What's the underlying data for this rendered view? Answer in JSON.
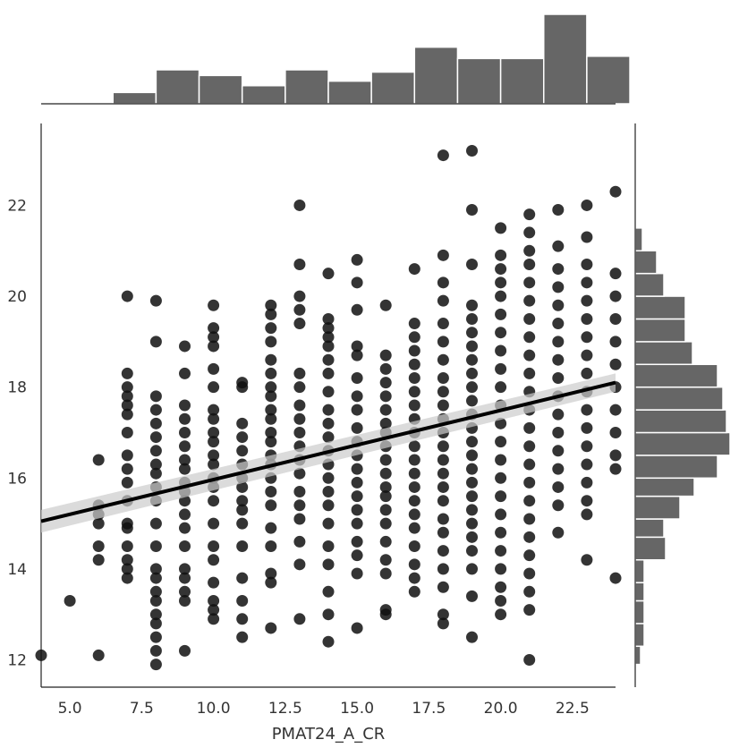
{
  "chart_data": {
    "type": "scatter",
    "title": "",
    "xlabel": "PMAT24_A_CR",
    "ylabel": "",
    "xlim": [
      4.0,
      24.0
    ],
    "ylim": [
      11.4,
      23.8
    ],
    "x_ticks": [
      "5.0",
      "7.5",
      "10.0",
      "12.5",
      "15.0",
      "17.5",
      "20.0",
      "22.5"
    ],
    "y_ticks": [
      "12",
      "14",
      "16",
      "18",
      "20",
      "22"
    ],
    "grid": false,
    "point_color": "#111111",
    "regression": {
      "x0": 4.0,
      "y0": 15.05,
      "x1": 24.0,
      "y1": 18.1,
      "ci_color": "#cccccc",
      "line_color": "#000000"
    },
    "scatter_columns": [
      {
        "x": 4,
        "y": [
          12.1
        ]
      },
      {
        "x": 5,
        "y": [
          13.3
        ]
      },
      {
        "x": 6,
        "y": [
          12.1,
          14.2,
          14.5,
          15.0,
          15.2,
          15.4,
          16.4
        ]
      },
      {
        "x": 7,
        "y": [
          13.8,
          14.0,
          14.2,
          14.5,
          14.9,
          15.0,
          15.5,
          15.9,
          16.2,
          16.5,
          17.0,
          17.4,
          17.6,
          17.8,
          18.0,
          18.3,
          20.0
        ]
      },
      {
        "x": 8,
        "y": [
          11.9,
          12.2,
          12.5,
          12.8,
          13.0,
          13.3,
          13.5,
          13.8,
          14.0,
          14.5,
          15.0,
          15.5,
          15.8,
          16.1,
          16.3,
          16.6,
          16.9,
          17.2,
          17.5,
          17.8,
          19.0,
          19.9
        ]
      },
      {
        "x": 9,
        "y": [
          12.2,
          13.3,
          13.5,
          13.8,
          14.0,
          14.5,
          14.9,
          15.2,
          15.5,
          15.7,
          15.9,
          16.2,
          16.4,
          16.7,
          17.0,
          17.3,
          17.6,
          18.3,
          18.9
        ]
      },
      {
        "x": 10,
        "y": [
          12.9,
          13.1,
          13.3,
          13.7,
          14.2,
          14.5,
          15.0,
          15.5,
          15.8,
          16.0,
          16.3,
          16.5,
          16.8,
          17.0,
          17.3,
          17.5,
          18.0,
          18.4,
          18.9,
          19.1,
          19.3,
          19.8
        ]
      },
      {
        "x": 11,
        "y": [
          12.5,
          12.9,
          13.3,
          13.8,
          14.5,
          15.0,
          15.3,
          15.5,
          15.8,
          16.0,
          16.3,
          16.6,
          16.9,
          17.2,
          18.0,
          18.1
        ]
      },
      {
        "x": 12,
        "y": [
          12.7,
          13.7,
          13.9,
          14.5,
          14.9,
          15.4,
          15.7,
          16.0,
          16.3,
          16.5,
          16.8,
          17.0,
          17.3,
          17.5,
          17.8,
          18.0,
          18.3,
          18.6,
          19.0,
          19.3,
          19.6,
          19.8
        ]
      },
      {
        "x": 13,
        "y": [
          12.9,
          14.1,
          14.6,
          15.1,
          15.4,
          15.7,
          16.1,
          16.4,
          16.7,
          17.0,
          17.3,
          17.6,
          18.0,
          18.3,
          19.4,
          19.7,
          20.0,
          20.7,
          22.0
        ]
      },
      {
        "x": 14,
        "y": [
          12.4,
          13.0,
          13.5,
          14.1,
          14.5,
          15.0,
          15.4,
          15.7,
          16.0,
          16.3,
          16.6,
          16.9,
          17.2,
          17.5,
          17.9,
          18.3,
          18.6,
          18.9,
          19.1,
          19.3,
          19.5,
          20.5
        ]
      },
      {
        "x": 15,
        "y": [
          12.7,
          13.9,
          14.3,
          14.6,
          15.0,
          15.3,
          15.6,
          15.9,
          16.2,
          16.5,
          16.8,
          17.1,
          17.5,
          17.8,
          18.2,
          18.7,
          18.9,
          19.7,
          20.3,
          20.8
        ]
      },
      {
        "x": 16,
        "y": [
          13.0,
          13.1,
          13.9,
          14.2,
          14.6,
          15.0,
          15.3,
          15.6,
          15.8,
          16.1,
          16.4,
          16.7,
          17.0,
          17.2,
          17.5,
          17.8,
          18.1,
          18.4,
          18.7,
          19.8
        ]
      },
      {
        "x": 17,
        "y": [
          13.5,
          13.8,
          14.1,
          14.5,
          14.9,
          15.2,
          15.5,
          15.8,
          16.1,
          16.4,
          16.7,
          17.0,
          17.3,
          17.6,
          17.9,
          18.2,
          18.5,
          18.8,
          19.1,
          19.4,
          20.6
        ]
      },
      {
        "x": 18,
        "y": [
          12.8,
          13.0,
          13.6,
          14.0,
          14.4,
          14.8,
          15.1,
          15.5,
          15.8,
          16.1,
          16.4,
          16.7,
          17.0,
          17.3,
          17.6,
          17.9,
          18.2,
          18.6,
          19.0,
          19.4,
          19.9,
          20.3,
          20.9,
          23.1
        ]
      },
      {
        "x": 19,
        "y": [
          12.5,
          13.4,
          14.0,
          14.4,
          14.7,
          15.0,
          15.3,
          15.6,
          15.9,
          16.2,
          16.5,
          16.8,
          17.1,
          17.4,
          17.7,
          18.0,
          18.3,
          18.6,
          18.9,
          19.2,
          19.5,
          19.8,
          20.7,
          21.9,
          23.2
        ]
      },
      {
        "x": 20,
        "y": [
          13.0,
          13.3,
          13.6,
          14.0,
          14.4,
          14.8,
          15.2,
          15.6,
          16.0,
          16.4,
          16.8,
          17.2,
          17.6,
          18.0,
          18.4,
          18.8,
          19.2,
          19.6,
          20.0,
          20.3,
          20.6,
          20.9,
          21.5
        ]
      },
      {
        "x": 21,
        "y": [
          12.0,
          13.1,
          13.5,
          13.9,
          14.3,
          14.7,
          15.1,
          15.5,
          15.9,
          16.3,
          16.7,
          17.1,
          17.5,
          17.9,
          18.3,
          18.7,
          19.1,
          19.5,
          19.9,
          20.3,
          20.7,
          21.0,
          21.4,
          21.8
        ]
      },
      {
        "x": 22,
        "y": [
          14.8,
          15.4,
          15.8,
          16.2,
          16.6,
          17.0,
          17.4,
          17.8,
          18.2,
          18.6,
          19.0,
          19.4,
          19.8,
          20.2,
          20.6,
          21.1,
          21.9
        ]
      },
      {
        "x": 23,
        "y": [
          14.2,
          15.2,
          15.5,
          15.9,
          16.3,
          16.7,
          17.1,
          17.5,
          17.9,
          18.3,
          18.7,
          19.1,
          19.5,
          19.9,
          20.3,
          20.7,
          21.3,
          22.0
        ]
      },
      {
        "x": 24,
        "y": [
          13.8,
          16.2,
          16.5,
          17.0,
          17.5,
          18.0,
          18.5,
          19.0,
          19.5,
          20.0,
          20.5,
          22.3
        ]
      }
    ],
    "marginal_x": {
      "bins": [
        6.5,
        8.0,
        9.5,
        11.0,
        12.5,
        14.0,
        15.5,
        17.0,
        18.5,
        20.0,
        21.5,
        23.0,
        24.5
      ],
      "counts": [
        1,
        3,
        2.5,
        1.6,
        3,
        2,
        2.8,
        5,
        4,
        4,
        7.9,
        4.2,
        4
      ]
    },
    "marginal_y": {
      "bins": [
        11.9,
        12.3,
        12.8,
        13.3,
        13.7,
        14.2,
        14.7,
        15.1,
        15.6,
        16.0,
        16.5,
        17.0,
        17.5,
        18.0,
        18.5,
        19.0,
        19.5,
        20.0,
        20.5,
        21.0,
        21.5
      ],
      "counts": [
        0.3,
        0.5,
        0.5,
        0.5,
        0.5,
        1.7,
        1.6,
        2.5,
        3.3,
        4.6,
        5.3,
        5.1,
        4.9,
        4.6,
        3.2,
        2.8,
        2.8,
        1.6,
        1.2,
        0.4,
        0.2
      ]
    }
  }
}
